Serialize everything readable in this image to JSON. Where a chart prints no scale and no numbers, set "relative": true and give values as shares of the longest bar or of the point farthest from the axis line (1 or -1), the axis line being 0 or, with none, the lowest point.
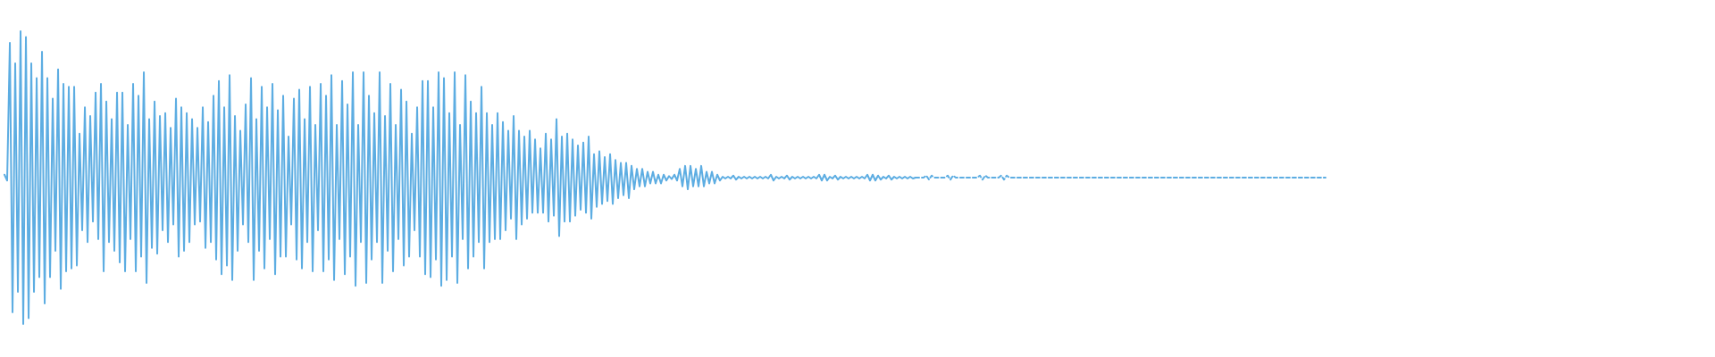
{
  "chart_data": {
    "type": "line",
    "relative": true,
    "categories": [
      null,
      null,
      null,
      null,
      null,
      null,
      null,
      null,
      null,
      null,
      null,
      null,
      null,
      null,
      null,
      null,
      null,
      null,
      null,
      null,
      null,
      null,
      null,
      null,
      null,
      null,
      null,
      null,
      null,
      null,
      null,
      null,
      null,
      null,
      null,
      null,
      null,
      null,
      null,
      null,
      null,
      null,
      null,
      null,
      null,
      null,
      null,
      null,
      null,
      null,
      null,
      null,
      null,
      null,
      null,
      null,
      null,
      null,
      null,
      null,
      null,
      null,
      null,
      null,
      null,
      null,
      null,
      null,
      null,
      null,
      null,
      null,
      null,
      null,
      null,
      null,
      null,
      null,
      null,
      null,
      null,
      null,
      null,
      null,
      null,
      null,
      null,
      null,
      null,
      null,
      null,
      null,
      null,
      null,
      null,
      null,
      null,
      null,
      null,
      null,
      null,
      null,
      null,
      null,
      null,
      null,
      null,
      null,
      null,
      null,
      null,
      null,
      null,
      null,
      null,
      null,
      null,
      null,
      null,
      null,
      null,
      null,
      null,
      null,
      null,
      null,
      null,
      null,
      null,
      null,
      null,
      null,
      null,
      null,
      null,
      null,
      null,
      null,
      null,
      null,
      null,
      null,
      null,
      null,
      null,
      null,
      null,
      null,
      null,
      null,
      null,
      null,
      null,
      null,
      null,
      null,
      null,
      null,
      null,
      null,
      null,
      null,
      null,
      null,
      null,
      null,
      null,
      null,
      null,
      null,
      null,
      null,
      null,
      null,
      null,
      null,
      null,
      null,
      null,
      null,
      null,
      null,
      null,
      null,
      null,
      null,
      null,
      null,
      null,
      null,
      null,
      null,
      null,
      null,
      null,
      null,
      null,
      null,
      null,
      null,
      null,
      null,
      null,
      null,
      null,
      null,
      null,
      null,
      null,
      null,
      null,
      null,
      null,
      null,
      null,
      null,
      null,
      null,
      null,
      null,
      null,
      null,
      null,
      null,
      null,
      null,
      null,
      null,
      null,
      null,
      null,
      null,
      null,
      null,
      null,
      null,
      null,
      null,
      null,
      null,
      null,
      null,
      null,
      null,
      null,
      null,
      null,
      null,
      null,
      null,
      null,
      null,
      null,
      null,
      null,
      null,
      null,
      null,
      null,
      null,
      null,
      null,
      null,
      null,
      null,
      null,
      null,
      null,
      null,
      null,
      null,
      null,
      null,
      null,
      null,
      null,
      null,
      null,
      null,
      null,
      null,
      null,
      null,
      null,
      null,
      null,
      null,
      null,
      null,
      null,
      null,
      null,
      null,
      null,
      null,
      null,
      null,
      null,
      null,
      null,
      null,
      null,
      null,
      null,
      null,
      null,
      null,
      null,
      null,
      null,
      null,
      null,
      null,
      null,
      null,
      null,
      null,
      null,
      null,
      null,
      null,
      null,
      null,
      null,
      null,
      null,
      null,
      null,
      null,
      null,
      null,
      null,
      null,
      null,
      null,
      null,
      null,
      null,
      null,
      null,
      null,
      null,
      null,
      null,
      null,
      null,
      null,
      null,
      null,
      null,
      null,
      null,
      null,
      null,
      null,
      null,
      null,
      null,
      null,
      null,
      null,
      null,
      null,
      null,
      null,
      null,
      null,
      null,
      null,
      null,
      null,
      null,
      null,
      null,
      null,
      null,
      null,
      null,
      null,
      null,
      null,
      null,
      null,
      null,
      null,
      null,
      null,
      null,
      null,
      null,
      null,
      null,
      null,
      null,
      null,
      null,
      null,
      null,
      null,
      null,
      null,
      null,
      null,
      null,
      null,
      null,
      null,
      null,
      null,
      null,
      null,
      null,
      null,
      null,
      null,
      null,
      null,
      null,
      null,
      null,
      null,
      null,
      null,
      null,
      null,
      null,
      null,
      null,
      null,
      null,
      null,
      null,
      null,
      null,
      null,
      null,
      null,
      null,
      null,
      null,
      null,
      null,
      null,
      null,
      null,
      null,
      null,
      null,
      null,
      null,
      null,
      null,
      null,
      null,
      null,
      null,
      null,
      null,
      null,
      null,
      null,
      null,
      null,
      null,
      null,
      null,
      null,
      null,
      null,
      null,
      null,
      null,
      null,
      null,
      null,
      null,
      null,
      null,
      null,
      null,
      null,
      null,
      null,
      null,
      null,
      null,
      null,
      null,
      null,
      null,
      null,
      null,
      null,
      null
    ],
    "series": [
      {
        "color": "#5dade2",
        "values": [
          0.51,
          0.49,
          0.96,
          0.04,
          0.89,
          0.11,
          1.0,
          0.0,
          0.98,
          0.02,
          0.89,
          0.11,
          0.84,
          0.16,
          0.93,
          0.07,
          0.84,
          0.16,
          0.77,
          0.25,
          0.87,
          0.12,
          0.82,
          0.18,
          0.81,
          0.19,
          0.81,
          0.2,
          0.65,
          0.32,
          0.74,
          0.28,
          0.71,
          0.35,
          0.79,
          0.29,
          0.82,
          0.18,
          0.76,
          0.28,
          0.7,
          0.25,
          0.79,
          0.21,
          0.79,
          0.18,
          0.68,
          0.29,
          0.82,
          0.18,
          0.78,
          0.23,
          0.86,
          0.14,
          0.7,
          0.26,
          0.76,
          0.24,
          0.71,
          0.32,
          0.72,
          0.28,
          0.67,
          0.34,
          0.77,
          0.23,
          0.74,
          0.25,
          0.72,
          0.28,
          0.7,
          0.34,
          0.67,
          0.35,
          0.74,
          0.26,
          0.69,
          0.28,
          0.78,
          0.22,
          0.83,
          0.17,
          0.74,
          0.2,
          0.85,
          0.15,
          0.71,
          0.25,
          0.66,
          0.34,
          0.75,
          0.28,
          0.84,
          0.15,
          0.7,
          0.25,
          0.81,
          0.19,
          0.74,
          0.29,
          0.82,
          0.17,
          0.73,
          0.23,
          0.78,
          0.23,
          0.64,
          0.34,
          0.77,
          0.22,
          0.8,
          0.19,
          0.7,
          0.28,
          0.81,
          0.18,
          0.68,
          0.32,
          0.82,
          0.18,
          0.78,
          0.22,
          0.85,
          0.15,
          0.68,
          0.29,
          0.83,
          0.17,
          0.75,
          0.23,
          0.86,
          0.13,
          0.68,
          0.28,
          0.86,
          0.14,
          0.78,
          0.22,
          0.72,
          0.28,
          0.86,
          0.14,
          0.71,
          0.25,
          0.82,
          0.18,
          0.68,
          0.29,
          0.8,
          0.2,
          0.76,
          0.23,
          0.65,
          0.32,
          0.74,
          0.23,
          0.83,
          0.17,
          0.83,
          0.16,
          0.74,
          0.22,
          0.86,
          0.13,
          0.84,
          0.15,
          0.72,
          0.23,
          0.86,
          0.14,
          0.68,
          0.29,
          0.85,
          0.19,
          0.76,
          0.23,
          0.72,
          0.28,
          0.81,
          0.19,
          0.72,
          0.28,
          0.68,
          0.29,
          0.72,
          0.29,
          0.69,
          0.32,
          0.66,
          0.36,
          0.71,
          0.29,
          0.66,
          0.34,
          0.64,
          0.36,
          0.66,
          0.38,
          0.63,
          0.38,
          0.6,
          0.38,
          0.65,
          0.35,
          0.63,
          0.37,
          0.7,
          0.3,
          0.64,
          0.35,
          0.65,
          0.35,
          0.63,
          0.37,
          0.61,
          0.39,
          0.62,
          0.38,
          0.64,
          0.36,
          0.58,
          0.4,
          0.59,
          0.41,
          0.57,
          0.42,
          0.58,
          0.41,
          0.56,
          0.43,
          0.55,
          0.44,
          0.55,
          0.43,
          0.54,
          0.46,
          0.53,
          0.47,
          0.53,
          0.47,
          0.52,
          0.48,
          0.52,
          0.48,
          0.51,
          0.48,
          0.51,
          0.49,
          0.505,
          0.495,
          0.51,
          0.49,
          0.53,
          0.47,
          0.54,
          0.46,
          0.54,
          0.47,
          0.53,
          0.47,
          0.54,
          0.47,
          0.52,
          0.48,
          0.52,
          0.48,
          0.51,
          0.49,
          0.503,
          0.497,
          0.503,
          0.497,
          0.507,
          0.493,
          0.503,
          0.497,
          0.503,
          0.497,
          0.503,
          0.497,
          0.503,
          0.497,
          0.503,
          0.497,
          0.503,
          0.497,
          0.51,
          0.49,
          0.503,
          0.497,
          0.503,
          0.497,
          0.507,
          0.493,
          0.503,
          0.497,
          0.503,
          0.497,
          0.503,
          0.497,
          0.503,
          0.497,
          0.503,
          0.497,
          0.51,
          0.49,
          0.51,
          0.49,
          0.503,
          0.497,
          0.507,
          0.493,
          0.503,
          0.497,
          0.503,
          0.497,
          0.503,
          0.497,
          0.503,
          0.497,
          0.503,
          0.497,
          0.51,
          0.49,
          0.51,
          0.49,
          0.507,
          0.493,
          0.503,
          0.497,
          0.507,
          0.493,
          0.503,
          0.497,
          0.503,
          0.497,
          0.503,
          0.497,
          0.503,
          0.497,
          0.5,
          null,
          null,
          null,
          null,
          null,
          null,
          null,
          null,
          null,
          null,
          null,
          null,
          null,
          null,
          null,
          null,
          null,
          null,
          null,
          null,
          null,
          null,
          null,
          null,
          null,
          null,
          null,
          null,
          null,
          null,
          null,
          null,
          null,
          null,
          null,
          null,
          null,
          null,
          null,
          null,
          null,
          null,
          null,
          null,
          null,
          null,
          null,
          null,
          null,
          null,
          null,
          null,
          null,
          null,
          null,
          null,
          null,
          null,
          null,
          null,
          null,
          null,
          null,
          null,
          null,
          null,
          null,
          null,
          null,
          null,
          null,
          null,
          null,
          null,
          null,
          null,
          null,
          null,
          null,
          null,
          null,
          null,
          null,
          null,
          null,
          null,
          null,
          null,
          null,
          null,
          null,
          null,
          null,
          null,
          null,
          null,
          null,
          null,
          null,
          null,
          null,
          null,
          null,
          null,
          null,
          null,
          null,
          null,
          null,
          null,
          null,
          null,
          null,
          null,
          null,
          null,
          null,
          null,
          null,
          null,
          null,
          null,
          null,
          null,
          null,
          null,
          null,
          null,
          null,
          null,
          null,
          null,
          null,
          null,
          null,
          null,
          null,
          null,
          null,
          null,
          null,
          null,
          null,
          null,
          null,
          null,
          null,
          null,
          null,
          null,
          null,
          null,
          null
        ]
      },
      {
        "color": "#5dade2",
        "line_style": "dashed",
        "values": [
          null,
          null,
          null,
          null,
          null,
          null,
          null,
          null,
          null,
          null,
          null,
          null,
          null,
          null,
          null,
          null,
          null,
          null,
          null,
          null,
          null,
          null,
          null,
          null,
          null,
          null,
          null,
          null,
          null,
          null,
          null,
          null,
          null,
          null,
          null,
          null,
          null,
          null,
          null,
          null,
          null,
          null,
          null,
          null,
          null,
          null,
          null,
          null,
          null,
          null,
          null,
          null,
          null,
          null,
          null,
          null,
          null,
          null,
          null,
          null,
          null,
          null,
          null,
          null,
          null,
          null,
          null,
          null,
          null,
          null,
          null,
          null,
          null,
          null,
          null,
          null,
          null,
          null,
          null,
          null,
          null,
          null,
          null,
          null,
          null,
          null,
          null,
          null,
          null,
          null,
          null,
          null,
          null,
          null,
          null,
          null,
          null,
          null,
          null,
          null,
          null,
          null,
          null,
          null,
          null,
          null,
          null,
          null,
          null,
          null,
          null,
          null,
          null,
          null,
          null,
          null,
          null,
          null,
          null,
          null,
          null,
          null,
          null,
          null,
          null,
          null,
          null,
          null,
          null,
          null,
          null,
          null,
          null,
          null,
          null,
          null,
          null,
          null,
          null,
          null,
          null,
          null,
          null,
          null,
          null,
          null,
          null,
          null,
          null,
          null,
          null,
          null,
          null,
          null,
          null,
          null,
          null,
          null,
          null,
          null,
          null,
          null,
          null,
          null,
          null,
          null,
          null,
          null,
          null,
          null,
          null,
          null,
          null,
          null,
          null,
          null,
          null,
          null,
          null,
          null,
          null,
          null,
          null,
          null,
          null,
          null,
          null,
          null,
          null,
          null,
          null,
          null,
          null,
          null,
          null,
          null,
          null,
          null,
          null,
          null,
          null,
          null,
          null,
          null,
          null,
          null,
          null,
          null,
          null,
          null,
          null,
          null,
          null,
          null,
          null,
          null,
          null,
          null,
          null,
          null,
          null,
          null,
          null,
          null,
          null,
          null,
          null,
          null,
          null,
          null,
          null,
          null,
          null,
          null,
          null,
          null,
          null,
          null,
          null,
          null,
          null,
          null,
          null,
          null,
          null,
          null,
          null,
          null,
          null,
          null,
          null,
          null,
          null,
          null,
          null,
          null,
          null,
          null,
          null,
          null,
          null,
          null,
          null,
          null,
          null,
          null,
          null,
          null,
          null,
          null,
          null,
          null,
          null,
          null,
          null,
          null,
          null,
          null,
          null,
          null,
          null,
          null,
          null,
          null,
          null,
          null,
          null,
          null,
          null,
          null,
          null,
          null,
          null,
          null,
          null,
          null,
          null,
          null,
          null,
          null,
          null,
          null,
          null,
          null,
          null,
          null,
          null,
          null,
          null,
          null,
          null,
          null,
          null,
          null,
          null,
          null,
          null,
          null,
          null,
          null,
          null,
          null,
          null,
          null,
          null,
          null,
          null,
          null,
          null,
          null,
          null,
          null,
          null,
          null,
          null,
          null,
          null,
          null,
          null,
          null,
          0.5,
          0.5,
          0.5,
          0.5,
          0.507,
          0.493,
          0.507,
          0.5,
          0.5,
          0.5,
          0.5,
          0.5,
          0.507,
          0.493,
          0.507,
          0.5,
          0.5,
          0.5,
          0.5,
          0.5,
          0.5,
          0.5,
          0.5,
          0.5,
          0.507,
          0.493,
          0.507,
          0.5,
          0.5,
          0.5,
          0.5,
          0.5,
          0.507,
          0.493,
          0.507,
          0.5,
          0.5,
          0.5,
          0.5,
          0.5,
          0.5,
          0.5,
          0.5,
          0.5,
          0.5,
          0.5,
          0.5,
          0.5,
          0.5,
          0.5,
          0.5,
          0.5,
          0.5,
          0.5,
          0.5,
          0.5,
          0.5,
          0.5,
          0.5,
          0.5,
          0.5,
          0.5,
          0.5,
          0.5,
          0.5,
          0.5,
          0.5,
          0.5,
          0.5,
          0.5,
          0.5,
          0.5,
          0.5,
          0.5,
          0.5,
          0.5,
          0.5,
          0.5,
          0.5,
          0.5,
          0.5,
          0.5,
          0.5,
          0.5,
          0.5,
          0.5,
          0.5,
          0.5,
          0.5,
          0.5,
          0.5,
          0.5,
          0.5,
          0.5,
          0.5,
          0.5,
          0.5,
          0.5,
          0.5,
          0.5,
          0.5,
          0.5,
          0.5,
          0.5,
          0.5,
          0.5,
          0.5,
          0.5,
          0.5,
          0.5,
          0.5,
          0.5,
          0.5,
          0.5,
          0.5,
          0.5,
          0.5,
          0.5,
          0.5,
          0.5,
          0.5,
          0.5,
          0.5,
          0.5,
          0.5,
          0.5,
          0.5,
          0.5,
          0.5,
          0.5,
          0.5,
          0.5,
          0.5,
          0.5,
          0.5,
          0.5,
          0.5,
          0.5,
          0.5,
          0.5,
          0.5,
          0.5,
          0.5,
          0.5,
          0.5,
          0.5,
          0.5,
          0.5,
          0.5,
          0.5,
          0.5,
          0.5,
          0.5,
          0.5
        ]
      }
    ]
  }
}
